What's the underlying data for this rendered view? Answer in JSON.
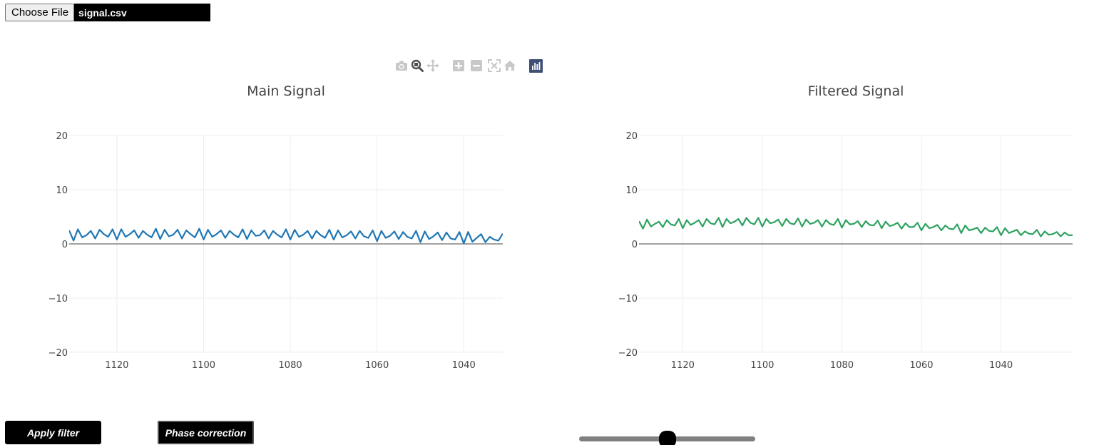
{
  "file_input": {
    "button_label": "Choose File",
    "file_name": "signal.csv"
  },
  "modebar": {
    "icons": [
      "camera-icon",
      "zoom-icon",
      "pan-icon",
      "zoom-in-icon",
      "zoom-out-icon",
      "autoscale-icon",
      "reset-axes-icon",
      "plotly-logo-icon"
    ],
    "active_icon": "zoom-icon",
    "colors": {
      "inactive": "#c8c8c8",
      "active": "#505050",
      "logo_bg": "#3f4f75"
    }
  },
  "buttons": {
    "apply_filter": "Apply filter",
    "phase_correction": "Phase correction"
  },
  "slider": {
    "value_fraction": 0.5
  },
  "chart_data": [
    {
      "type": "line",
      "title": "Main Signal",
      "color": "#1f77b4",
      "xlim": [
        1131,
        1031
      ],
      "ylim": [
        -20,
        20
      ],
      "xticks": [
        1120,
        1100,
        1080,
        1060,
        1040
      ],
      "yticks": [
        20,
        10,
        0,
        -10,
        -20
      ],
      "ytick_labels": [
        "20",
        "10",
        "0",
        "−10",
        "−20"
      ],
      "grid": true,
      "series": [
        {
          "x": [
            1131,
            1130,
            1129,
            1128,
            1127,
            1126,
            1125,
            1124,
            1123,
            1122,
            1121,
            1120,
            1119,
            1118,
            1117,
            1116,
            1115,
            1114,
            1113,
            1112,
            1111,
            1110,
            1109,
            1108,
            1107,
            1106,
            1105,
            1104,
            1103,
            1102,
            1101,
            1100,
            1099,
            1098,
            1097,
            1096,
            1095,
            1094,
            1093,
            1092,
            1091,
            1090,
            1089,
            1088,
            1087,
            1086,
            1085,
            1084,
            1083,
            1082,
            1081,
            1080,
            1079,
            1078,
            1077,
            1076,
            1075,
            1074,
            1073,
            1072,
            1071,
            1070,
            1069,
            1068,
            1067,
            1066,
            1065,
            1064,
            1063,
            1062,
            1061,
            1060,
            1059,
            1058,
            1057,
            1056,
            1055,
            1054,
            1053,
            1052,
            1051,
            1050,
            1049,
            1048,
            1047,
            1046,
            1045,
            1044,
            1043,
            1042,
            1041,
            1040,
            1039,
            1038,
            1037,
            1036,
            1035,
            1034,
            1033,
            1032,
            1031
          ],
          "y": [
            2.5,
            0.6,
            2.7,
            1.2,
            1.6,
            2.4,
            1.0,
            2.6,
            1.8,
            1.3,
            2.7,
            0.8,
            2.7,
            1.3,
            1.8,
            2.5,
            1.1,
            2.4,
            1.7,
            1.2,
            2.8,
            0.9,
            2.6,
            1.4,
            1.7,
            2.6,
            1.0,
            2.5,
            1.8,
            1.2,
            2.8,
            0.8,
            2.6,
            1.3,
            1.8,
            2.5,
            1.1,
            2.4,
            1.7,
            1.2,
            2.7,
            0.9,
            2.5,
            1.5,
            1.6,
            2.5,
            1.0,
            2.4,
            1.7,
            1.2,
            2.7,
            0.8,
            2.6,
            1.3,
            1.7,
            2.4,
            1.0,
            2.4,
            1.6,
            1.1,
            2.6,
            0.8,
            2.5,
            1.2,
            1.6,
            2.3,
            1.0,
            2.4,
            1.4,
            1.1,
            2.5,
            0.5,
            2.4,
            1.1,
            1.5,
            2.3,
            0.9,
            2.2,
            1.3,
            1.0,
            2.4,
            0.3,
            2.3,
            0.9,
            1.4,
            2.1,
            0.7,
            2.1,
            1.0,
            0.8,
            2.2,
            0.1,
            2.2,
            0.4,
            1.1,
            1.8,
            0.3,
            1.3,
            0.8,
            0.6,
            1.9
          ]
        }
      ]
    },
    {
      "type": "line",
      "title": "Filtered Signal",
      "color": "#2ca25f",
      "xlim": [
        1131,
        1022
      ],
      "ylim": [
        -20,
        20
      ],
      "xticks": [
        1120,
        1100,
        1080,
        1060,
        1040
      ],
      "yticks": [
        20,
        10,
        0,
        -10,
        -20
      ],
      "ytick_labels": [
        "20",
        "10",
        "0",
        "−10",
        "−20"
      ],
      "grid": true,
      "series": [
        {
          "x": [
            1131,
            1130,
            1129,
            1128,
            1127,
            1126,
            1125,
            1124,
            1123,
            1122,
            1121,
            1120,
            1119,
            1118,
            1117,
            1116,
            1115,
            1114,
            1113,
            1112,
            1111,
            1110,
            1109,
            1108,
            1107,
            1106,
            1105,
            1104,
            1103,
            1102,
            1101,
            1100,
            1099,
            1098,
            1097,
            1096,
            1095,
            1094,
            1093,
            1092,
            1091,
            1090,
            1089,
            1088,
            1087,
            1086,
            1085,
            1084,
            1083,
            1082,
            1081,
            1080,
            1079,
            1078,
            1077,
            1076,
            1075,
            1074,
            1073,
            1072,
            1071,
            1070,
            1069,
            1068,
            1067,
            1066,
            1065,
            1064,
            1063,
            1062,
            1061,
            1060,
            1059,
            1058,
            1057,
            1056,
            1055,
            1054,
            1053,
            1052,
            1051,
            1050,
            1049,
            1048,
            1047,
            1046,
            1045,
            1044,
            1043,
            1042,
            1041,
            1040,
            1039,
            1038,
            1037,
            1036,
            1035,
            1034,
            1033,
            1032,
            1031,
            1030,
            1029,
            1028,
            1027,
            1026,
            1025,
            1024,
            1023,
            1022
          ],
          "y": [
            4.2,
            2.8,
            4.5,
            3.2,
            3.7,
            4.1,
            3.1,
            4.4,
            3.6,
            3.4,
            4.6,
            2.9,
            4.4,
            3.5,
            3.9,
            4.4,
            3.2,
            4.6,
            3.8,
            3.6,
            4.8,
            3.1,
            4.6,
            3.8,
            4.1,
            4.6,
            3.4,
            4.8,
            3.9,
            3.6,
            4.8,
            3.2,
            4.6,
            3.8,
            4.0,
            4.5,
            3.3,
            4.6,
            3.8,
            3.6,
            4.7,
            3.2,
            4.5,
            3.7,
            3.9,
            4.4,
            3.2,
            4.4,
            3.7,
            3.5,
            4.6,
            3.0,
            4.4,
            3.6,
            3.7,
            4.2,
            3.1,
            4.2,
            3.5,
            3.4,
            4.3,
            2.9,
            4.1,
            3.3,
            3.5,
            3.9,
            2.8,
            3.8,
            3.1,
            3.1,
            3.9,
            2.5,
            3.7,
            2.9,
            3.1,
            3.5,
            2.5,
            3.4,
            2.8,
            2.7,
            3.6,
            2.0,
            3.4,
            2.5,
            2.7,
            3.0,
            2.0,
            3.0,
            2.4,
            2.3,
            3.1,
            1.6,
            2.9,
            2.0,
            2.3,
            2.6,
            1.6,
            2.3,
            1.9,
            1.8,
            2.6,
            1.4,
            2.3,
            1.7,
            1.8,
            2.2,
            1.4,
            2.1,
            1.6,
            1.6
          ]
        }
      ]
    }
  ]
}
